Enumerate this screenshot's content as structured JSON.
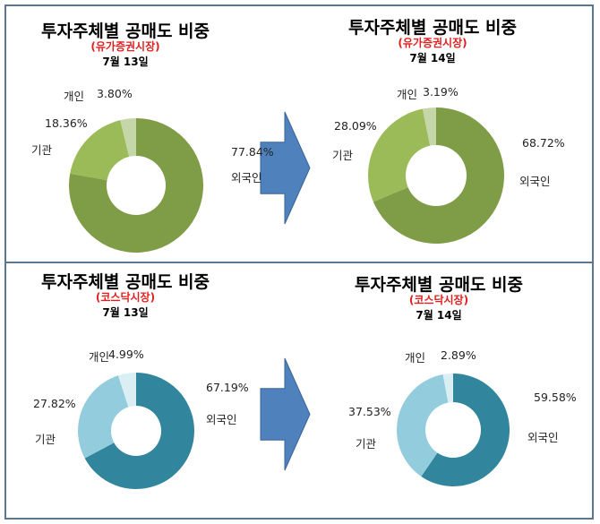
{
  "chart_data": [
    {
      "type": "pie",
      "title": "투자주체별 공매도 비중",
      "subtitle": "(유가증권시장)",
      "date": "7월 13일",
      "categories": [
        "외국인",
        "기관",
        "개인"
      ],
      "values": [
        77.84,
        18.36,
        3.8
      ],
      "labels": [
        "77.84%",
        "18.36%",
        "3.80%"
      ],
      "colors": [
        "#7f9c47",
        "#9bbb59",
        "#c5d7a8"
      ]
    },
    {
      "type": "pie",
      "title": "투자주체별 공매도 비중",
      "subtitle": "(유가증권시장)",
      "date": "7월 14일",
      "categories": [
        "외국인",
        "기관",
        "개인"
      ],
      "values": [
        68.72,
        28.09,
        3.19
      ],
      "labels": [
        "68.72%",
        "28.09%",
        "3.19%"
      ],
      "colors": [
        "#7f9c47",
        "#9bbb59",
        "#c5d7a8"
      ]
    },
    {
      "type": "pie",
      "title": "투자주체별 공매도 비중",
      "subtitle": "(코스닥시장)",
      "date": "7월 13일",
      "categories": [
        "외국인",
        "기관",
        "개인"
      ],
      "values": [
        67.19,
        27.82,
        4.99
      ],
      "labels": [
        "67.19%",
        "27.82%",
        "4.99%"
      ],
      "colors": [
        "#31859c",
        "#93cddd",
        "#dbeef4"
      ]
    },
    {
      "type": "pie",
      "title": "투자주체별 공매도 비중",
      "subtitle": "(코스닥시장)",
      "date": "7월 14일",
      "categories": [
        "외국인",
        "기관",
        "개인"
      ],
      "values": [
        59.58,
        37.53,
        2.89
      ],
      "labels": [
        "59.58%",
        "37.53%",
        "2.89%"
      ],
      "colors": [
        "#31859c",
        "#93cddd",
        "#dbeef4"
      ]
    }
  ],
  "arrow_color": "#4f81bd"
}
